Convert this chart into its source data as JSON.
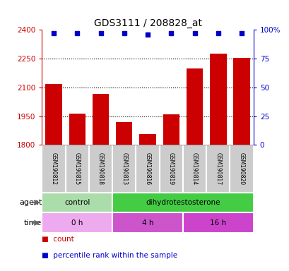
{
  "title": "GDS3111 / 208828_at",
  "samples": [
    "GSM190812",
    "GSM190815",
    "GSM190818",
    "GSM190813",
    "GSM190816",
    "GSM190819",
    "GSM190814",
    "GSM190817",
    "GSM190820"
  ],
  "counts": [
    2118,
    1965,
    2065,
    1920,
    1855,
    1960,
    2200,
    2275,
    2255
  ],
  "percentiles": [
    97,
    97,
    97,
    97,
    96,
    97,
    97,
    97,
    97
  ],
  "ylim_left": [
    1800,
    2400
  ],
  "ylim_right": [
    0,
    100
  ],
  "yticks_left": [
    1800,
    1950,
    2100,
    2250,
    2400
  ],
  "yticks_right": [
    0,
    25,
    50,
    75,
    100
  ],
  "bar_color": "#cc0000",
  "dot_color": "#0000cc",
  "agent_labels": [
    {
      "label": "control",
      "start": 0,
      "end": 3,
      "color": "#aaddaa"
    },
    {
      "label": "dihydrotestosterone",
      "start": 3,
      "end": 9,
      "color": "#44cc44"
    }
  ],
  "time_labels": [
    {
      "label": "0 h",
      "start": 0,
      "end": 3,
      "color": "#eeaaee"
    },
    {
      "label": "4 h",
      "start": 3,
      "end": 6,
      "color": "#cc55cc"
    },
    {
      "label": "16 h",
      "start": 6,
      "end": 9,
      "color": "#cc44cc"
    }
  ],
  "legend_items": [
    {
      "label": "count",
      "color": "#cc0000"
    },
    {
      "label": "percentile rank within the sample",
      "color": "#0000cc"
    }
  ],
  "dotted_lines": [
    1950,
    2100,
    2250
  ],
  "n_samples": 9
}
